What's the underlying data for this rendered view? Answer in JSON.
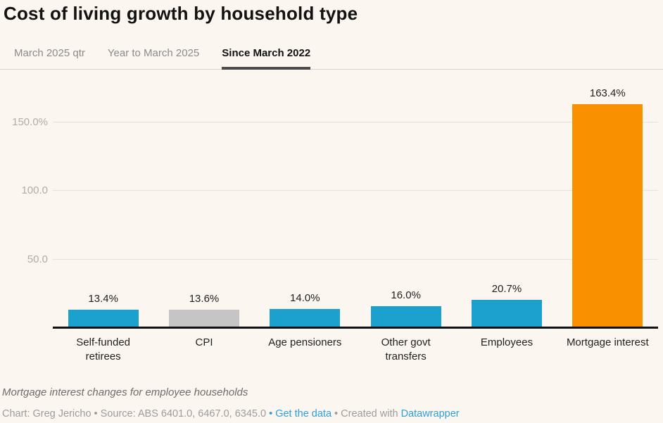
{
  "title": "Cost of living growth by household type",
  "tabs": [
    {
      "label": "March 2025 qtr",
      "active": false
    },
    {
      "label": "Year to March 2025",
      "active": false
    },
    {
      "label": "Since March 2022",
      "active": true
    }
  ],
  "chart_data": {
    "type": "bar",
    "title": "Cost of living growth by household type",
    "active_view": "Since March 2022",
    "categories": [
      "Self-funded retirees",
      "CPI",
      "Age pensioners",
      "Other govt transfers",
      "Employees",
      "Mortgage interest"
    ],
    "values": [
      13.4,
      13.6,
      14.0,
      16.0,
      20.7,
      163.4
    ],
    "value_labels": [
      "13.4%",
      "13.6%",
      "14.0%",
      "16.0%",
      "20.7%",
      "163.4%"
    ],
    "bar_colors": [
      "#1ca0ce",
      "#c5c5c5",
      "#1ca0ce",
      "#1ca0ce",
      "#1ca0ce",
      "#f99000"
    ],
    "y_ticks": [
      {
        "value": 50,
        "label": "50.0"
      },
      {
        "value": 100,
        "label": "100.0"
      },
      {
        "value": 150,
        "label": "150.0%"
      }
    ],
    "ylim": [
      0,
      183
    ],
    "grid": true,
    "legend": "none",
    "xlabel": "",
    "ylabel": ""
  },
  "colors": {
    "background": "#fcf6f0",
    "bar_blue": "#1ca0ce",
    "bar_gray": "#c5c5c5",
    "bar_orange": "#f99000",
    "link_blue": "#2f9fd8",
    "gridline": "#e6e1db",
    "axis_line": "#121212"
  },
  "footer": {
    "notes": "Mortgage interest changes for employee households",
    "credit_text": "Chart: Greg Jericho • Source: ABS 6401.0, 6467.0, 6345.0 ",
    "get_data_label": "• Get the data",
    "created_with": " • Created with ",
    "datawrapper_label": "Datawrapper"
  }
}
